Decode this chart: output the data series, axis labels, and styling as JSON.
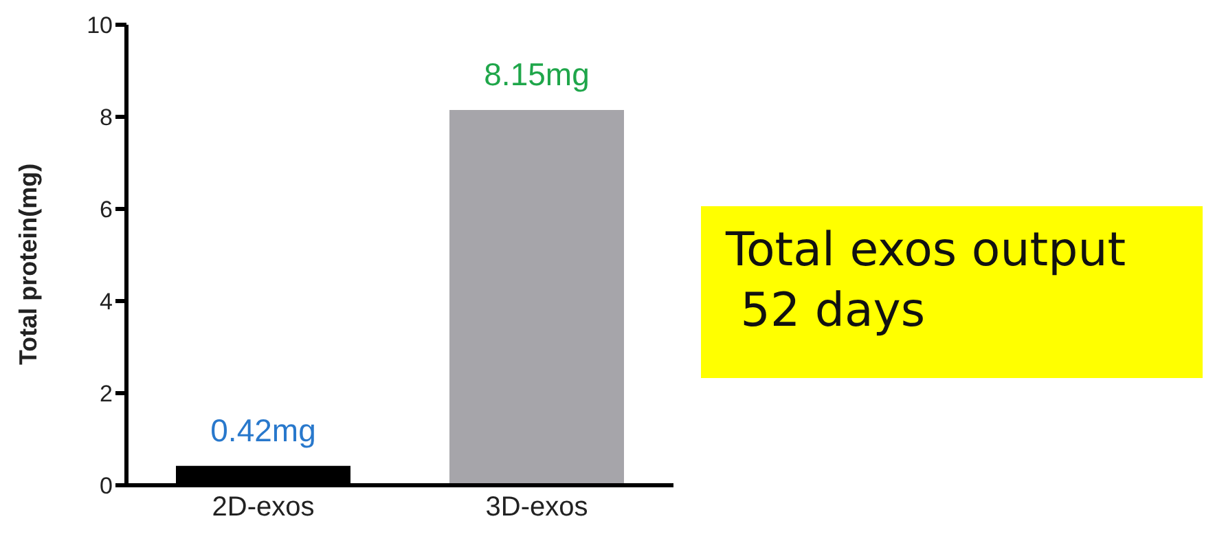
{
  "chart_data": {
    "type": "bar",
    "ylabel": "Total protein(mg)",
    "categories": [
      "2D-exos",
      "3D-exos"
    ],
    "values": [
      0.42,
      8.15
    ],
    "colors": [
      "#000000",
      "#a6a5aa"
    ],
    "value_labels": [
      "0.42mg",
      "8.15mg"
    ],
    "ylim": [
      0,
      10
    ],
    "yticks": [
      0,
      2,
      4,
      6,
      8,
      10
    ],
    "grid": false,
    "annotations": [
      "Total exos output\n 52 days"
    ]
  }
}
